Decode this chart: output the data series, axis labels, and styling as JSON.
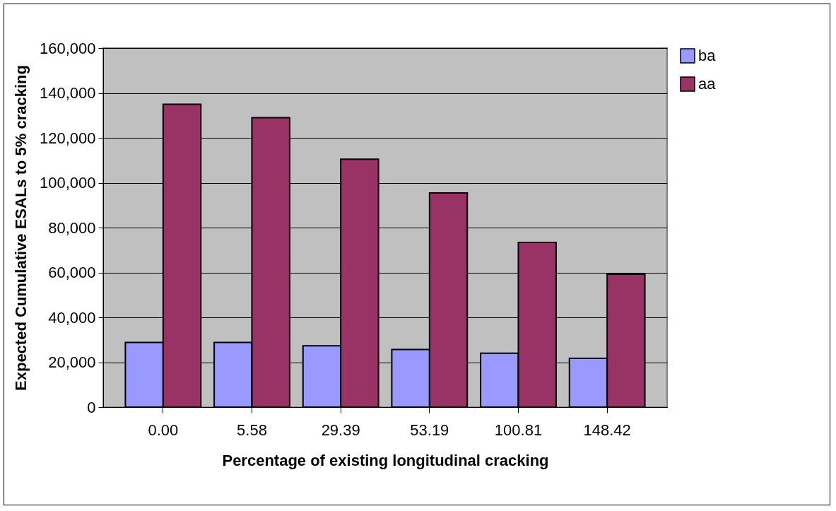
{
  "chart_data": {
    "type": "bar",
    "xlabel": "Percentage of existing longitudinal cracking",
    "ylabel": "Expected Cumulative ESALs to 5% cracking",
    "categories": [
      "0.00",
      "5.58",
      "29.39",
      "53.19",
      "100.81",
      "148.42"
    ],
    "series": [
      {
        "name": "ba",
        "color": "#9999ff",
        "values": [
          28800,
          28800,
          27300,
          25700,
          24000,
          21700
        ]
      },
      {
        "name": "aa",
        "color": "#993366",
        "values": [
          135000,
          129000,
          110500,
          95400,
          73400,
          59200
        ]
      }
    ],
    "ylim": [
      0,
      160000
    ],
    "yticks": [
      {
        "value": 0,
        "label": "0"
      },
      {
        "value": 20000,
        "label": "20,000"
      },
      {
        "value": 40000,
        "label": "40,000"
      },
      {
        "value": 60000,
        "label": "60,000"
      },
      {
        "value": 80000,
        "label": "80,000"
      },
      {
        "value": 100000,
        "label": "100,000"
      },
      {
        "value": 120000,
        "label": "120,000"
      },
      {
        "value": 140000,
        "label": "140,000"
      },
      {
        "value": 160000,
        "label": "160,000"
      }
    ],
    "grid": "y",
    "legend": "right"
  }
}
